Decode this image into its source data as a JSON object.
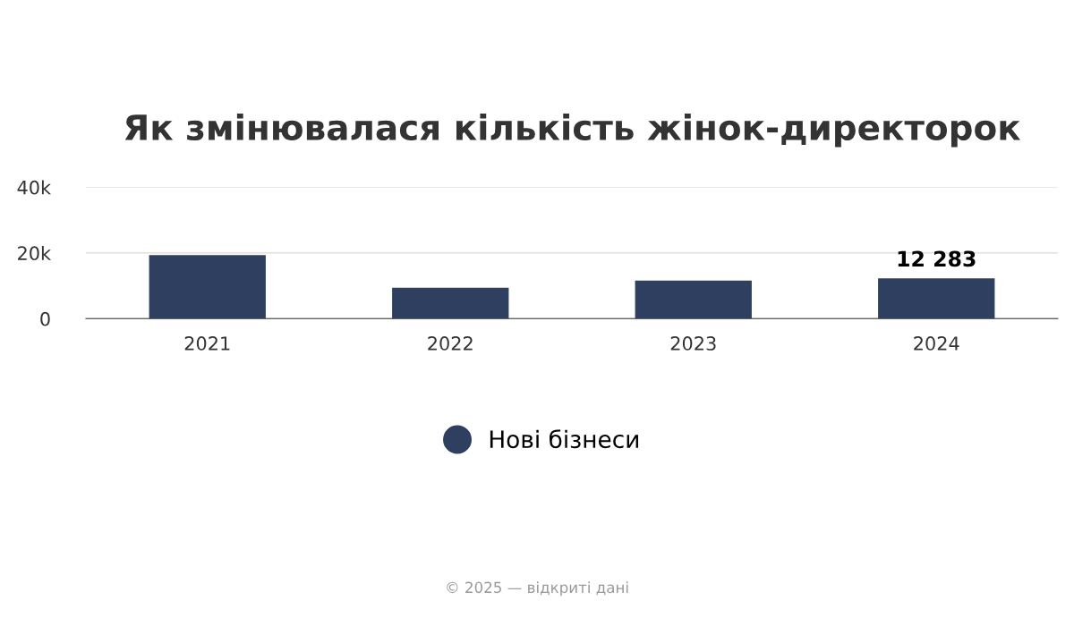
{
  "chart_data": {
    "type": "bar",
    "title": "Як змінювалася кількість жінок-директорок",
    "categories": [
      "2021",
      "2022",
      "2023",
      "2024"
    ],
    "series": [
      {
        "name": "Нові бізнеси",
        "color": "#2e3f5f",
        "values": [
          19300,
          9400,
          11600,
          12283
        ],
        "value_labels": [
          null,
          null,
          null,
          "12 283"
        ]
      }
    ],
    "ylim": [
      0,
      40000
    ],
    "yticks": [
      0,
      {
        "value": 20000,
        "label": "20k"
      },
      {
        "value": 40000,
        "label": "40k"
      }
    ],
    "grid": "y",
    "legend": "bottom",
    "marker": "circle",
    "annotations": [
      "© 2025 — відкриті дані"
    ]
  }
}
